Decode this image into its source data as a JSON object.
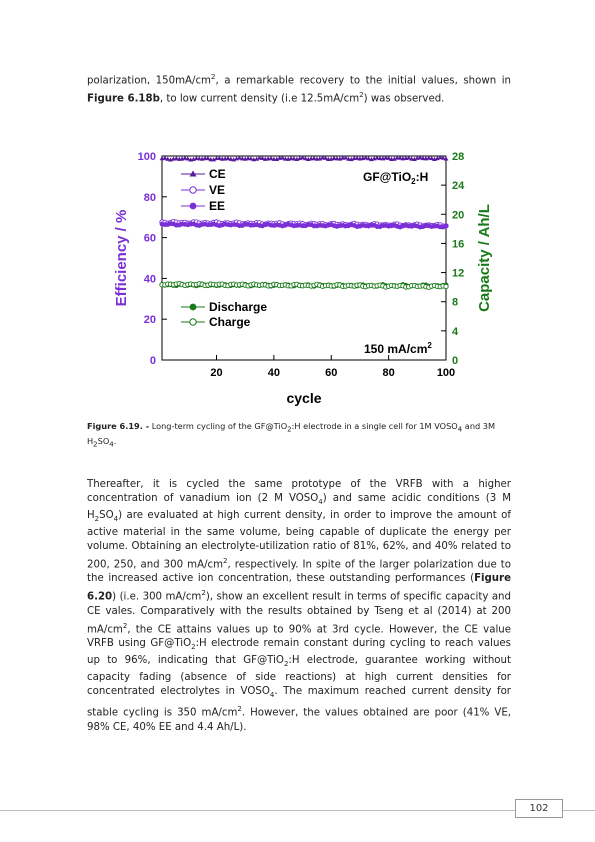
{
  "page": {
    "p1": [
      {
        "t": "polarization, 150mA/cm"
      },
      {
        "sup": "2"
      },
      {
        "t": ", a remarkable recovery to the initial values, shown in "
      },
      {
        "b": "Figure 6.18b"
      },
      {
        "t": ", to low current density (i.e 12.5mA/cm"
      },
      {
        "sup": "2"
      },
      {
        "t": ") was observed."
      }
    ],
    "caption": [
      {
        "b": "Figure 6.19. -"
      },
      {
        "t": " Long-term cycling of the GF@TiO"
      },
      {
        "sub": "2"
      },
      {
        "t": ":H electrode in a single cell for 1M VOSO"
      },
      {
        "sub": "4"
      },
      {
        "t": " and 3M H"
      },
      {
        "sub": "2"
      },
      {
        "t": "SO"
      },
      {
        "sub": "4"
      },
      {
        "t": "."
      }
    ],
    "p2": [
      {
        "t": "Thereafter, it is cycled the same prototype of the VRFB with a higher concentration of vanadium ion (2 M VOSO"
      },
      {
        "sub": "4"
      },
      {
        "t": ") and same acidic conditions (3 M H"
      },
      {
        "sub": "2"
      },
      {
        "t": "SO"
      },
      {
        "sub": "4"
      },
      {
        "t": ") are evaluated at high current density, in order to improve the amount of active material in the same volume, being capable of duplicate the energy per volume. Obtaining an electrolyte-utilization ratio of 81%, 62%, and 40% related to 200, 250, and 300 mA/cm"
      },
      {
        "sup": "2"
      },
      {
        "t": ", respectively. In spite of the larger polarization due to the increased active ion concentration, these outstanding performances ("
      },
      {
        "b": "Figure 6.20"
      },
      {
        "t": ") (i.e. 300 mA/cm"
      },
      {
        "sup": "2"
      },
      {
        "t": "), show an excellent result in terms of specific capacity and CE vales. Comparatively with the results obtained by Tseng et al (2014) at 200 mA/cm"
      },
      {
        "sup": "2"
      },
      {
        "t": ", the CE attains values up to 90% at 3rd cycle. However, the CE value VRFB using GF@TiO"
      },
      {
        "sub": "2"
      },
      {
        "t": ":H electrode remain constant during cycling to reach values up to 96%, indicating that GF@TiO"
      },
      {
        "sub": "2"
      },
      {
        "t": ":H electrode,  guarantee working without capacity fading (absence of side reactions) at high current densities for concentrated electrolytes in VOSO"
      },
      {
        "sub": "4"
      },
      {
        "t": ". The maximum reached current density for stable cycling is 350 mA/cm"
      },
      {
        "sup": "2"
      },
      {
        "t": ". However, the values obtained are poor (41% VE, 98% CE, 40% EE and 4.4 Ah/L)."
      }
    ],
    "page_number": "102"
  },
  "chart_data": {
    "type": "scatter",
    "xlabel": "cycle",
    "ylabel_left": "Efficiency / %",
    "ylabel_right": "Capacity / Ah/L",
    "xlim": [
      1,
      100
    ],
    "ylim_left": [
      0,
      100
    ],
    "ylim_right": [
      0,
      28
    ],
    "xticks": [
      20,
      40,
      60,
      80,
      100
    ],
    "yticks_left": [
      0,
      20,
      40,
      60,
      80,
      100
    ],
    "yticks_right": [
      0,
      4,
      8,
      12,
      16,
      20,
      24,
      28
    ],
    "annotations": {
      "material": "GF@TiO",
      "material_sub": "2",
      "material_suffix": ":H",
      "current": "150 mA/cm",
      "current_sup": "2"
    },
    "colors": {
      "efficiency": "#7b2fd6",
      "efficiency_dark": "#5a1a9e",
      "capacity": "#1a7a1a"
    },
    "series": [
      {
        "name": "CE",
        "axis": "left",
        "marker": "filled-triangle",
        "y_start": 98.5,
        "y_end": 98.8
      },
      {
        "name": "VE",
        "axis": "left",
        "marker": "open-circle",
        "y_start": 67.5,
        "y_end": 66.0
      },
      {
        "name": "EE",
        "axis": "left",
        "marker": "filled-circle",
        "y_start": 66.5,
        "y_end": 65.5
      },
      {
        "name": "Discharge",
        "axis": "right",
        "marker": "filled-circle",
        "y_start": 10.3,
        "y_end": 10.2
      },
      {
        "name": "Charge",
        "axis": "right",
        "marker": "open-circle",
        "y_start": 10.4,
        "y_end": 10.1
      }
    ],
    "legend_top": [
      "CE",
      "VE",
      "EE"
    ],
    "legend_bottom": [
      "Discharge",
      "Charge"
    ]
  }
}
